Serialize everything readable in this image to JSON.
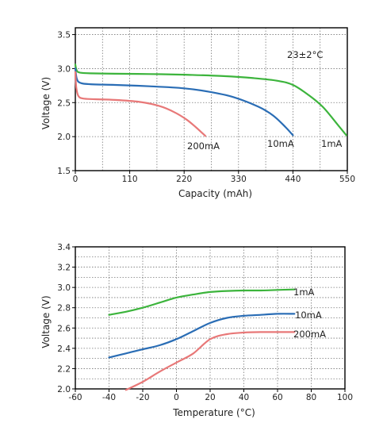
{
  "chart_data": [
    {
      "type": "line",
      "title": "",
      "xlabel": "Capacity (mAh)",
      "ylabel": "Voltage (V)",
      "xlim": [
        0,
        550
      ],
      "ylim": [
        1.5,
        3.6
      ],
      "xticks": [
        0,
        110,
        220,
        330,
        440,
        550
      ],
      "yticks": [
        1.5,
        2.0,
        2.5,
        3.0,
        3.5
      ],
      "xtick_labels": [
        "0",
        "110",
        "220",
        "330",
        "440",
        "550"
      ],
      "ytick_labels": [
        "1.5",
        "2.0",
        "2.5",
        "3.0",
        "3.5"
      ],
      "grid": true,
      "annotation": "23±2°C",
      "series": [
        {
          "name": "1mA",
          "color": "#3cb43c",
          "x": [
            0,
            3,
            10,
            30,
            80,
            150,
            220,
            300,
            360,
            410,
            440,
            470,
            500,
            530,
            548
          ],
          "y": [
            3.06,
            2.97,
            2.94,
            2.93,
            2.925,
            2.92,
            2.91,
            2.89,
            2.86,
            2.82,
            2.76,
            2.62,
            2.44,
            2.18,
            2.02
          ]
        },
        {
          "name": "10mA",
          "color": "#2a6db5",
          "x": [
            0,
            3,
            10,
            30,
            80,
            150,
            220,
            270,
            320,
            370,
            400,
            425,
            440
          ],
          "y": [
            3.0,
            2.85,
            2.79,
            2.77,
            2.76,
            2.74,
            2.71,
            2.66,
            2.58,
            2.44,
            2.31,
            2.14,
            2.02
          ]
        },
        {
          "name": "200mA",
          "color": "#e87878",
          "x": [
            0,
            2,
            6,
            15,
            40,
            80,
            130,
            170,
            200,
            225,
            245,
            263
          ],
          "y": [
            2.95,
            2.72,
            2.6,
            2.56,
            2.55,
            2.54,
            2.51,
            2.45,
            2.36,
            2.25,
            2.13,
            2.01
          ]
        }
      ],
      "series_labels": [
        "1mA",
        "10mA",
        "200mA"
      ]
    },
    {
      "type": "line",
      "title": "",
      "xlabel": "Temperature (°C)",
      "ylabel": "Voltage (V)",
      "xlim": [
        -60,
        100
      ],
      "ylim": [
        2.0,
        3.4
      ],
      "xticks": [
        -60,
        -40,
        -20,
        0,
        20,
        40,
        60,
        80,
        100
      ],
      "yticks": [
        2.0,
        2.2,
        2.4,
        2.6,
        2.8,
        3.0,
        3.2,
        3.4
      ],
      "xtick_labels": [
        "-60",
        "-40",
        "-20",
        "0",
        "20",
        "40",
        "60",
        "80",
        "100"
      ],
      "ytick_labels": [
        "2.0",
        "2.2",
        "2.4",
        "2.6",
        "2.8",
        "3.0",
        "3.2",
        "3.4"
      ],
      "grid": true,
      "series": [
        {
          "name": "1mA",
          "color": "#3cb43c",
          "x": [
            -40,
            -30,
            -20,
            -10,
            0,
            10,
            20,
            30,
            40,
            50,
            60,
            70
          ],
          "y": [
            2.73,
            2.76,
            2.8,
            2.85,
            2.9,
            2.93,
            2.955,
            2.965,
            2.97,
            2.97,
            2.975,
            2.98
          ]
        },
        {
          "name": "10mA",
          "color": "#2a6db5",
          "x": [
            -40,
            -30,
            -20,
            -10,
            0,
            10,
            20,
            30,
            40,
            50,
            60,
            70
          ],
          "y": [
            2.31,
            2.35,
            2.39,
            2.43,
            2.49,
            2.57,
            2.65,
            2.7,
            2.72,
            2.73,
            2.74,
            2.74
          ]
        },
        {
          "name": "200mA",
          "color": "#e87878",
          "x": [
            -30,
            -20,
            -10,
            0,
            10,
            20,
            30,
            40,
            50,
            60,
            70
          ],
          "y": [
            1.99,
            2.07,
            2.17,
            2.26,
            2.35,
            2.49,
            2.54,
            2.555,
            2.56,
            2.56,
            2.56
          ]
        }
      ],
      "series_labels": [
        "1mA",
        "10mA",
        "200mA"
      ]
    }
  ]
}
